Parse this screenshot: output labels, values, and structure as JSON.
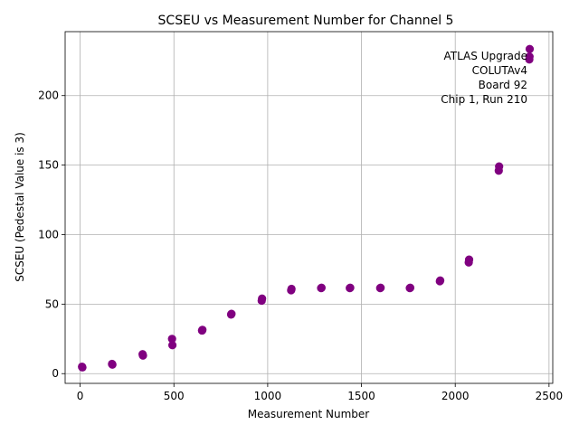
{
  "chart_data": {
    "type": "scatter",
    "title": "SCSEU vs Measurement Number for Channel 5",
    "xlabel": "Measurement Number",
    "ylabel": "SCSEU (Pedestal Value is 3)",
    "xlim": [
      -80,
      2520
    ],
    "ylim": [
      -7,
      246
    ],
    "xticks": [
      0,
      500,
      1000,
      1500,
      2000,
      2500
    ],
    "yticks": [
      0,
      50,
      100,
      150,
      200
    ],
    "grid": true,
    "marker_color": "#800080",
    "annotation": [
      "ATLAS Upgrade",
      "COLUTAv4",
      "Board 92",
      "Chip 1, Run 210"
    ],
    "points": [
      {
        "x": 10,
        "y": 5
      },
      {
        "x": 12,
        "y": 4.5
      },
      {
        "x": 170,
        "y": 7
      },
      {
        "x": 172,
        "y": 6.5
      },
      {
        "x": 333,
        "y": 14
      },
      {
        "x": 335,
        "y": 13
      },
      {
        "x": 490,
        "y": 25
      },
      {
        "x": 492,
        "y": 20.5
      },
      {
        "x": 650,
        "y": 31
      },
      {
        "x": 652,
        "y": 31.5
      },
      {
        "x": 805,
        "y": 42.5
      },
      {
        "x": 807,
        "y": 43
      },
      {
        "x": 968,
        "y": 52.5
      },
      {
        "x": 970,
        "y": 54
      },
      {
        "x": 1125,
        "y": 60
      },
      {
        "x": 1127,
        "y": 61
      },
      {
        "x": 1285,
        "y": 61.5
      },
      {
        "x": 1287,
        "y": 61.8
      },
      {
        "x": 1438,
        "y": 61.5
      },
      {
        "x": 1440,
        "y": 61.8
      },
      {
        "x": 1600,
        "y": 61.5
      },
      {
        "x": 1602,
        "y": 61.8
      },
      {
        "x": 1758,
        "y": 61.5
      },
      {
        "x": 1760,
        "y": 61.8
      },
      {
        "x": 1918,
        "y": 66.5
      },
      {
        "x": 1920,
        "y": 67
      },
      {
        "x": 2072,
        "y": 80
      },
      {
        "x": 2074,
        "y": 82
      },
      {
        "x": 2232,
        "y": 146
      },
      {
        "x": 2234,
        "y": 149
      },
      {
        "x": 2395,
        "y": 226
      },
      {
        "x": 2396,
        "y": 228
      },
      {
        "x": 2397,
        "y": 233.5
      }
    ]
  }
}
